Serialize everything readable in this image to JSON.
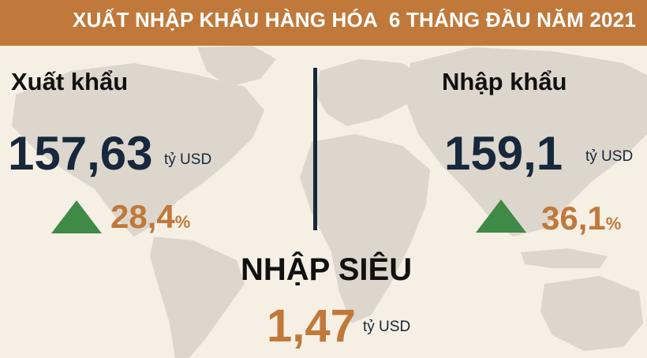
{
  "header": {
    "title": "XUẤT NHẬP KHẨU HÀNG HÓA  6 THÁNG ĐẦU NĂM 2021"
  },
  "export": {
    "label": "Xuất khẩu",
    "value": "157,63",
    "unit": "tỷ USD",
    "growth": "28,4",
    "growth_sign": "%"
  },
  "import": {
    "label": "Nhập khẩu",
    "value": "159,1",
    "unit": "tỷ USD",
    "growth": "36,1",
    "growth_sign": "%"
  },
  "surplus": {
    "label": "NHẬP SIÊU",
    "value": "1,47",
    "unit": "tỷ USD"
  },
  "colors": {
    "header": "#c0793b",
    "background": "#f6efe4",
    "navy": "#17283c",
    "green": "#3e8a46",
    "map": "#dcd6cd"
  }
}
